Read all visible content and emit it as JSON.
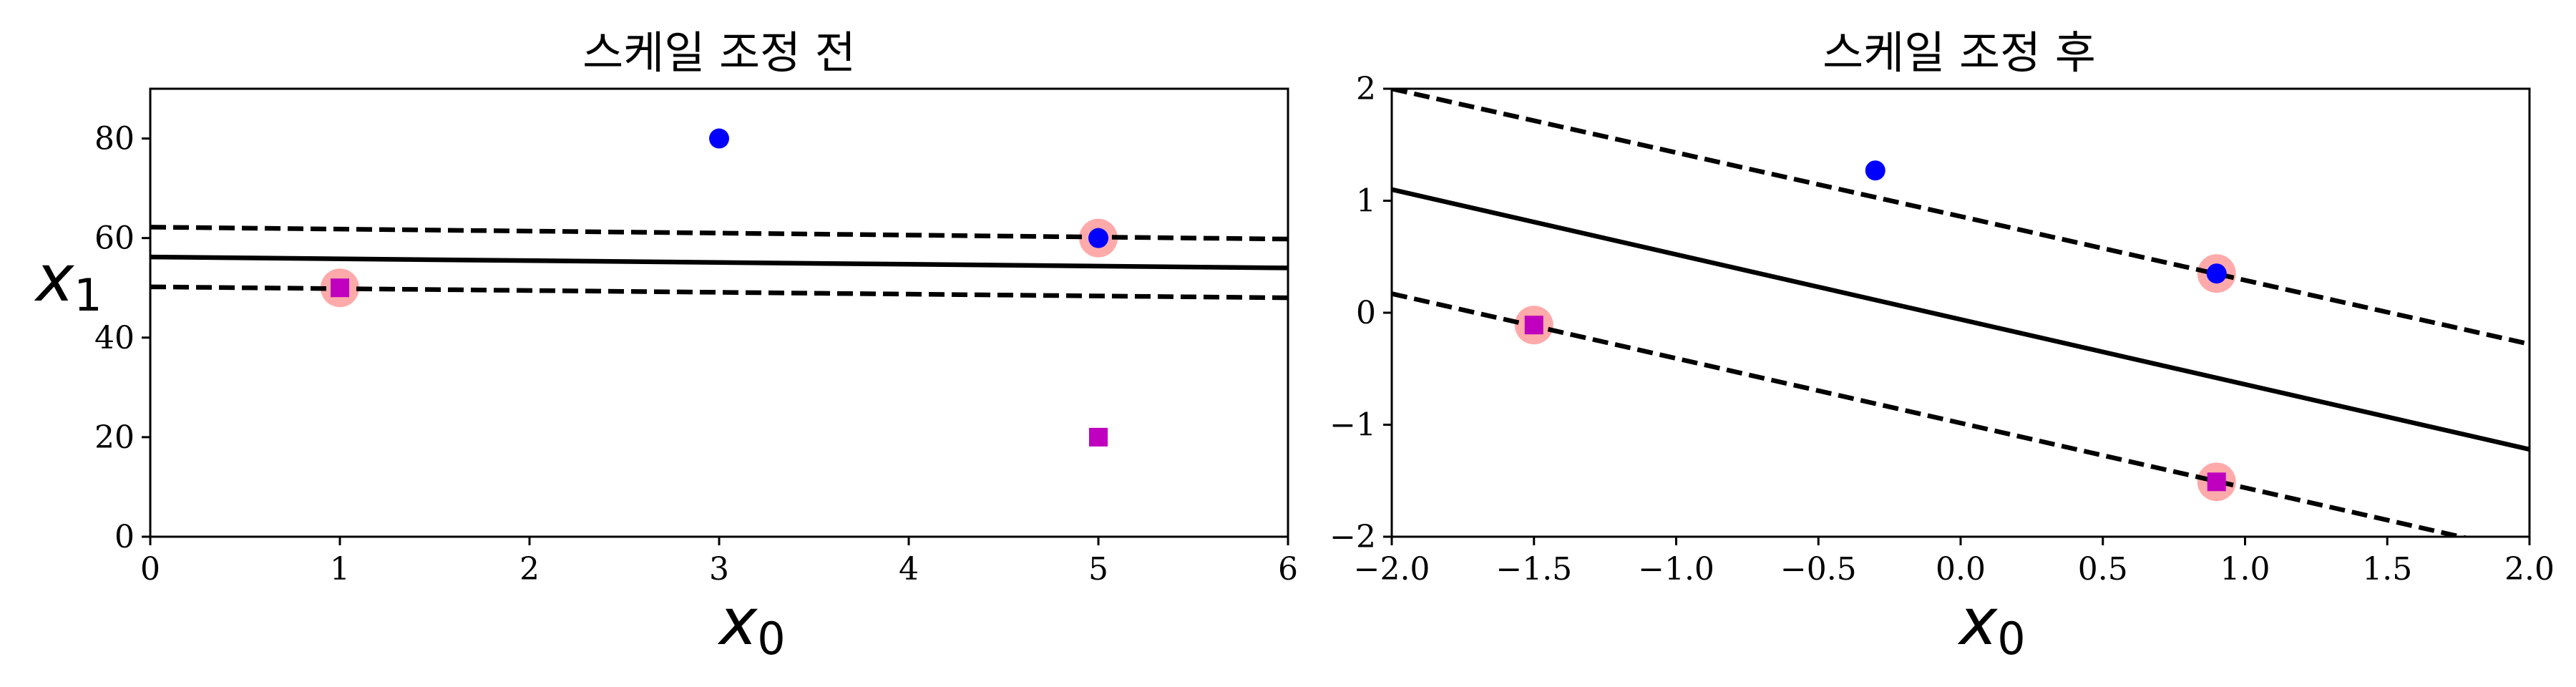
{
  "chart_data": [
    {
      "type": "scatter",
      "title": "스케일 조정 전",
      "xlabel": "x0",
      "ylabel": "x1",
      "xlim": [
        0,
        6
      ],
      "ylim": [
        0,
        90
      ],
      "xticks": [
        0,
        1,
        2,
        3,
        4,
        5,
        6
      ],
      "yticks": [
        0,
        20,
        40,
        60,
        80
      ],
      "points": [
        {
          "x": 1,
          "y": 50,
          "marker": "square",
          "color": "#bf00bf",
          "class": 0
        },
        {
          "x": 5,
          "y": 20,
          "marker": "square",
          "color": "#bf00bf",
          "class": 0
        },
        {
          "x": 3,
          "y": 80,
          "marker": "circle",
          "color": "#0000ff",
          "class": 1
        },
        {
          "x": 5,
          "y": 60,
          "marker": "circle",
          "color": "#0000ff",
          "class": 1
        }
      ],
      "support_vectors": [
        {
          "x": 1,
          "y": 50
        },
        {
          "x": 5,
          "y": 60
        }
      ],
      "lines": [
        {
          "style": "solid",
          "points": [
            [
              0,
              56.2
            ],
            [
              6,
              54.0
            ]
          ]
        },
        {
          "style": "dashed",
          "points": [
            [
              0,
              62.2
            ],
            [
              6,
              59.8
            ]
          ]
        },
        {
          "style": "dashed",
          "points": [
            [
              0,
              50.2
            ],
            [
              6,
              48.0
            ]
          ]
        }
      ],
      "grid": false
    },
    {
      "type": "scatter",
      "title": "스케일 조정 후",
      "xlabel": "x0",
      "ylabel": "",
      "xlim": [
        -2.0,
        2.0
      ],
      "ylim": [
        -2,
        2
      ],
      "xticks": [
        -2.0,
        -1.5,
        -1.0,
        -0.5,
        0.0,
        0.5,
        1.0,
        1.5,
        2.0
      ],
      "xtick_labels": [
        "−2.0",
        "−1.5",
        "−1.0",
        "−0.5",
        "0.0",
        "0.5",
        "1.0",
        "1.5",
        "2.0"
      ],
      "yticks": [
        -2,
        -1,
        0,
        1,
        2
      ],
      "ytick_labels": [
        "−2",
        "−1",
        "0",
        "1",
        "2"
      ],
      "points": [
        {
          "x": -1.5,
          "y": -0.11,
          "marker": "square",
          "color": "#bf00bf",
          "class": 0
        },
        {
          "x": 0.9,
          "y": -1.51,
          "marker": "square",
          "color": "#bf00bf",
          "class": 0
        },
        {
          "x": -0.3,
          "y": 1.27,
          "marker": "circle",
          "color": "#0000ff",
          "class": 1
        },
        {
          "x": 0.9,
          "y": 0.35,
          "marker": "circle",
          "color": "#0000ff",
          "class": 1
        }
      ],
      "support_vectors": [
        {
          "x": -1.5,
          "y": -0.11
        },
        {
          "x": 0.9,
          "y": 0.35
        },
        {
          "x": 0.9,
          "y": -1.51
        }
      ],
      "lines": [
        {
          "style": "solid",
          "points": [
            [
              -2.0,
              1.1
            ],
            [
              2.0,
              -1.22
            ]
          ]
        },
        {
          "style": "dashed",
          "points": [
            [
              -2.0,
              2.0
            ],
            [
              2.0,
              -0.28
            ]
          ]
        },
        {
          "style": "dashed",
          "points": [
            [
              -2.0,
              0.17
            ],
            [
              2.0,
              -2.14
            ]
          ]
        }
      ],
      "grid": false
    }
  ],
  "colors": {
    "class0": "#bf00bf",
    "class1": "#0000ff",
    "support_vector": "#ffaaaa",
    "line": "#000000"
  }
}
